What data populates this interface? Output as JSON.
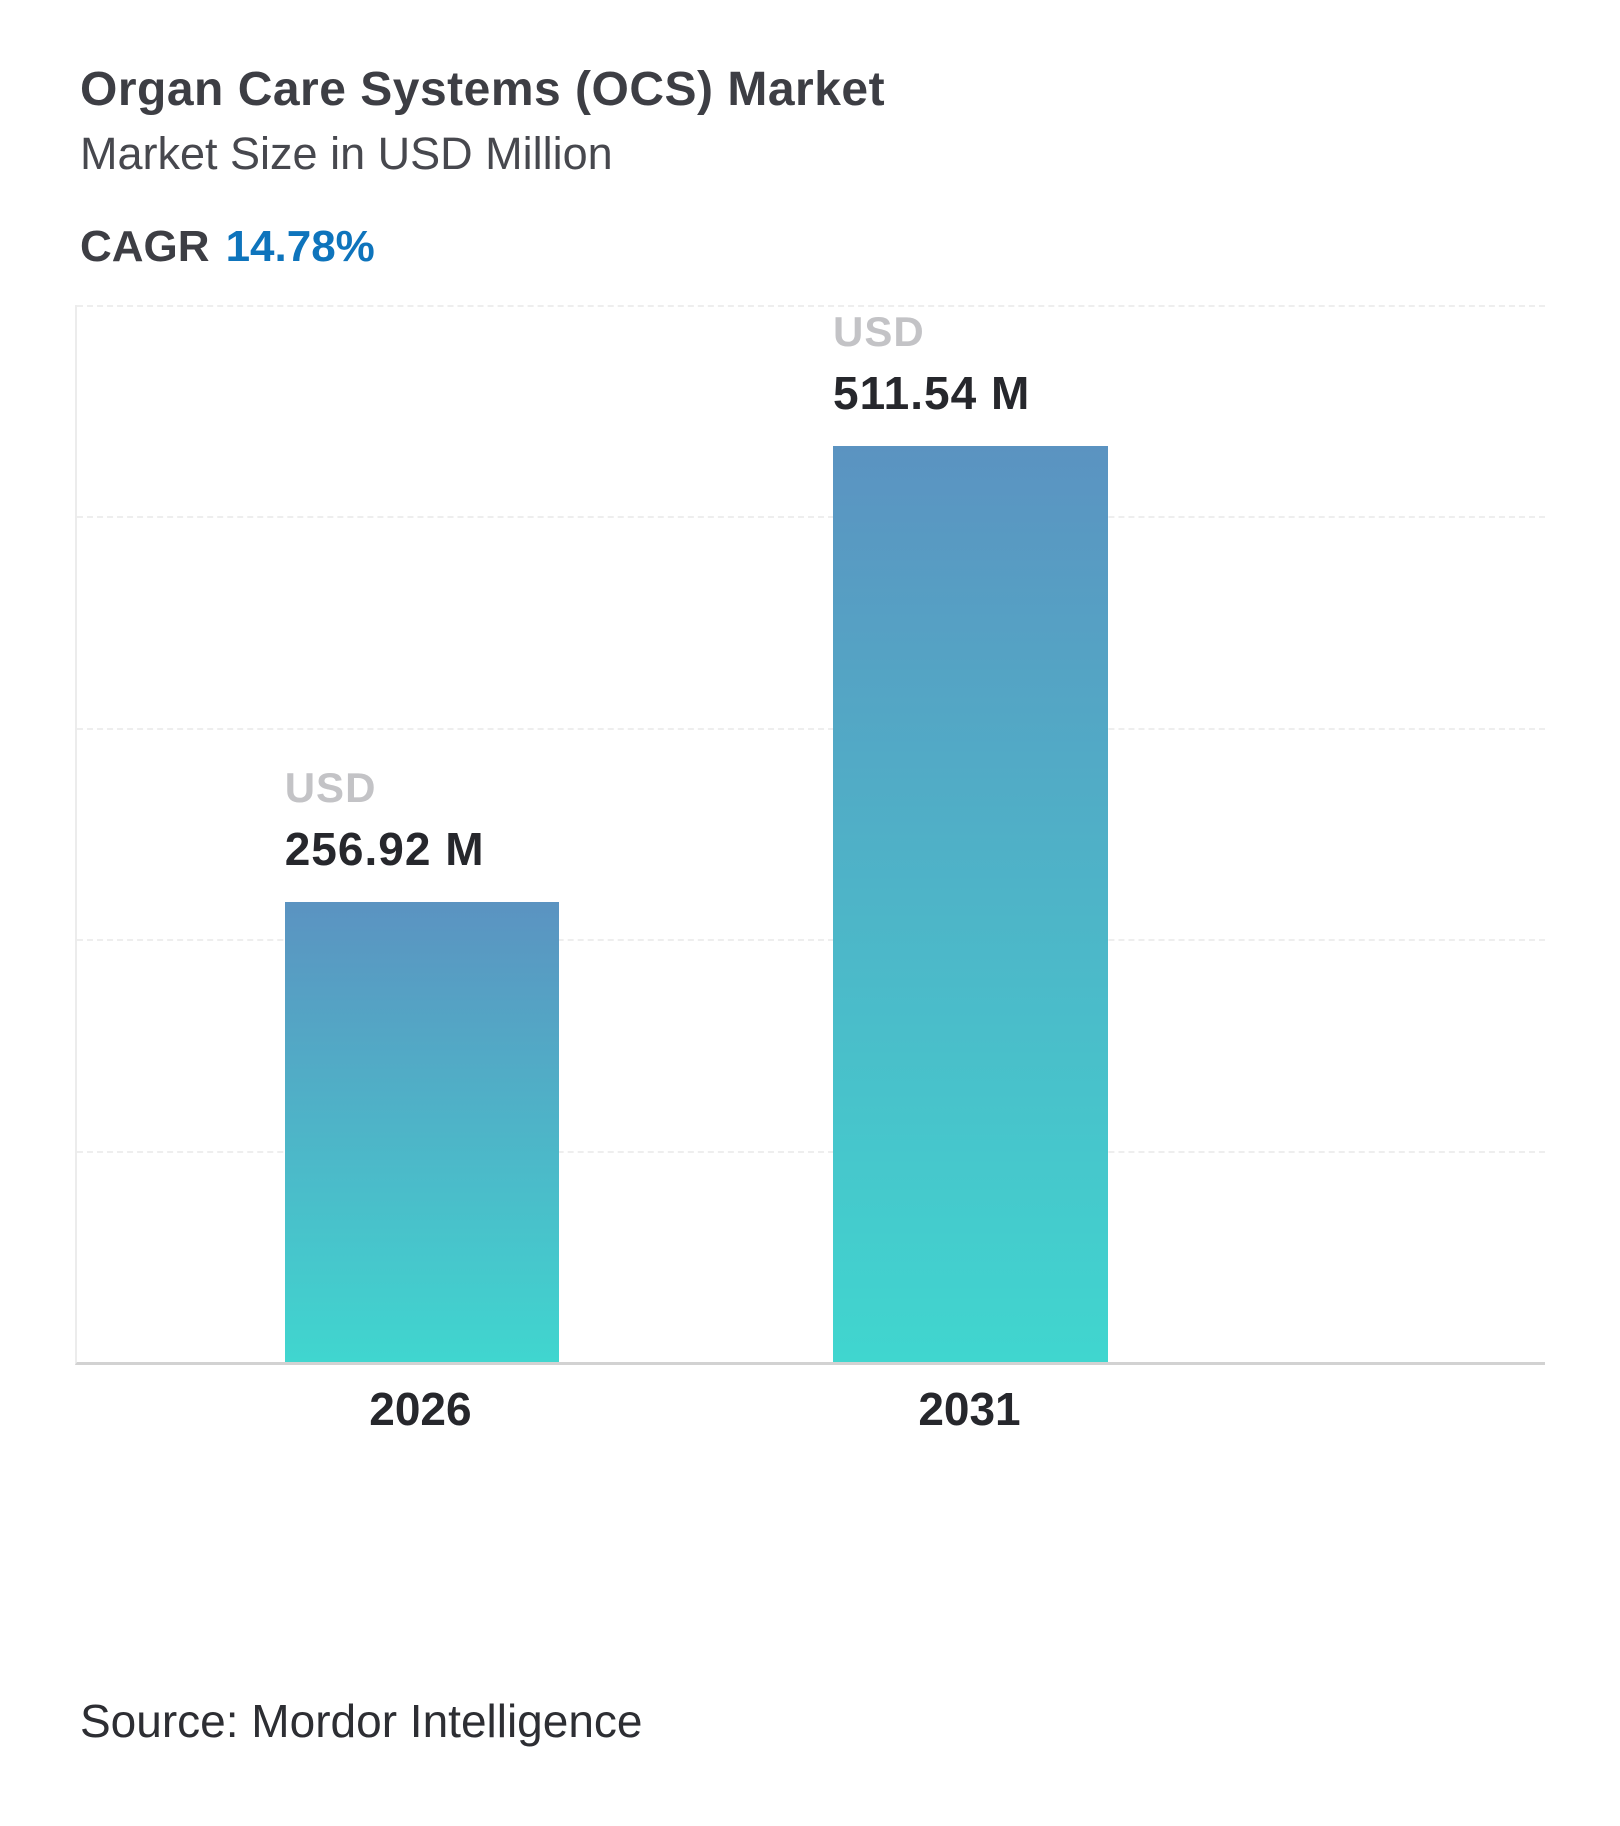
{
  "header": {
    "title": "Organ Care Systems (OCS) Market",
    "subtitle": "Market Size in USD Million",
    "cagr_label": "CAGR",
    "cagr_value": "14.78%"
  },
  "chart_data": {
    "type": "bar",
    "title": "Organ Care Systems (OCS) Market",
    "subtitle": "Market Size in USD Million",
    "cagr_percent": 14.78,
    "categories": [
      "2026",
      "2031"
    ],
    "values": [
      256.92,
      511.54
    ],
    "value_labels": [
      {
        "currency": "USD",
        "value": "256.92 M"
      },
      {
        "currency": "USD",
        "value": "511.54 M"
      }
    ],
    "xlabel": "",
    "ylabel": "Market Size in USD Million",
    "ylim": [
      0,
      590
    ],
    "grid": "horizontal-dashed",
    "legend": "none",
    "colors": {
      "bar_gradient_top": "#5b93c1",
      "bar_gradient_bottom": "#40d6cf",
      "accent_blue": "#0e74bc",
      "currency_label_gray": "#c3c3c6",
      "gridline_gray": "#eeeeee"
    }
  },
  "footer": {
    "source": "Source: Mordor Intelligence"
  }
}
